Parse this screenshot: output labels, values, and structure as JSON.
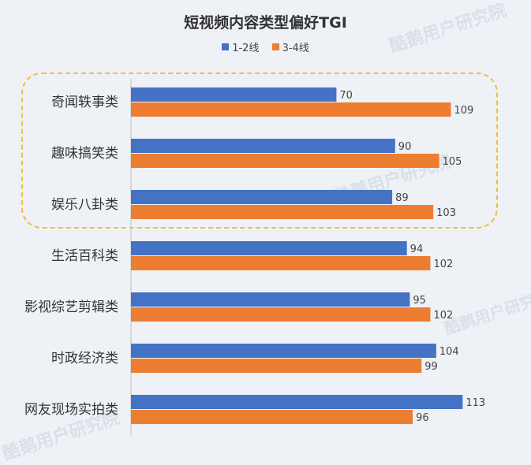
{
  "chart_data": {
    "type": "bar",
    "orientation": "horizontal",
    "title": "短视频内容类型偏好TGI",
    "xlabel": "",
    "ylabel": "",
    "categories": [
      "奇闻轶事类",
      "趣味搞笑类",
      "娱乐八卦类",
      "生活百科类",
      "影视综艺剪辑类",
      "时政经济类",
      "网友现场实拍类"
    ],
    "series": [
      {
        "name": "1-2线",
        "color": "#4472c4",
        "values": [
          70,
          90,
          89,
          94,
          95,
          104,
          113
        ]
      },
      {
        "name": "3-4线",
        "color": "#ed7d31",
        "values": [
          109,
          105,
          103,
          102,
          102,
          99,
          96
        ]
      }
    ],
    "xlim": [
      0,
      120
    ],
    "legend_position": "top",
    "grid": false,
    "highlighted_categories": [
      "奇闻轶事类",
      "趣味搞笑类",
      "娱乐八卦类"
    ]
  },
  "watermarks": [
    "酷鹅用户研究院",
    "酷鹅用户研究院",
    "酷鹅用户研究院",
    "酷鹅用户研究院"
  ]
}
